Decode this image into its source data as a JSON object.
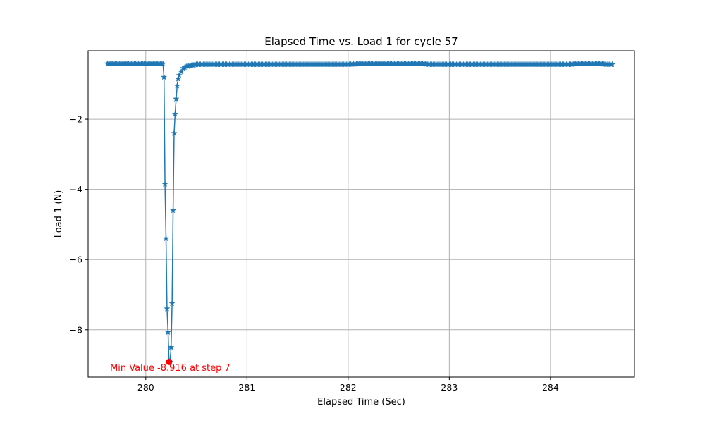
{
  "chart_data": {
    "type": "line",
    "title": "Elapsed Time vs. Load 1 for cycle 57",
    "xlabel": "Elapsed Time (Sec)",
    "ylabel": "Load 1 (N)",
    "xlim": [
      279.43,
      284.83
    ],
    "ylim": [
      -9.35,
      -0.05
    ],
    "xticks": [
      280,
      281,
      282,
      283,
      284
    ],
    "xtick_labels": [
      "280",
      "281",
      "282",
      "283",
      "284"
    ],
    "yticks": [
      -8,
      -6,
      -4,
      -2
    ],
    "ytick_labels": [
      "−8",
      "−6",
      "−4",
      "−2"
    ],
    "grid": true,
    "marker": "star",
    "series": [
      {
        "color": "#1f77b4",
        "x": [
          279.62,
          279.7,
          279.8,
          279.9,
          280.0,
          280.1,
          280.17,
          280.18,
          280.19,
          280.2,
          280.21,
          280.22,
          280.23,
          280.24,
          280.25,
          280.26,
          280.27,
          280.28,
          280.29,
          280.3,
          280.31,
          280.32,
          280.33,
          280.35,
          280.37,
          280.4,
          280.45,
          280.5,
          280.6,
          280.8,
          281.0,
          281.5,
          282.0,
          282.12,
          282.2,
          282.5,
          282.75,
          282.8,
          283.0,
          283.5,
          284.0,
          284.2,
          284.25,
          284.4,
          284.5,
          284.55,
          284.61
        ],
        "y": [
          -0.42,
          -0.42,
          -0.42,
          -0.42,
          -0.42,
          -0.42,
          -0.42,
          -0.8,
          -3.85,
          -5.4,
          -7.4,
          -8.07,
          -8.9,
          -8.916,
          -8.5,
          -7.25,
          -4.6,
          -2.4,
          -1.85,
          -1.42,
          -1.05,
          -0.85,
          -0.75,
          -0.65,
          -0.55,
          -0.5,
          -0.47,
          -0.44,
          -0.44,
          -0.44,
          -0.44,
          -0.44,
          -0.44,
          -0.42,
          -0.42,
          -0.42,
          -0.42,
          -0.44,
          -0.44,
          -0.44,
          -0.44,
          -0.44,
          -0.42,
          -0.42,
          -0.42,
          -0.44,
          -0.44
        ]
      }
    ],
    "annotation": {
      "text": "Min Value -8.916 at step 7",
      "color": "#ff0000",
      "x": 280.23,
      "y": -8.916
    }
  }
}
